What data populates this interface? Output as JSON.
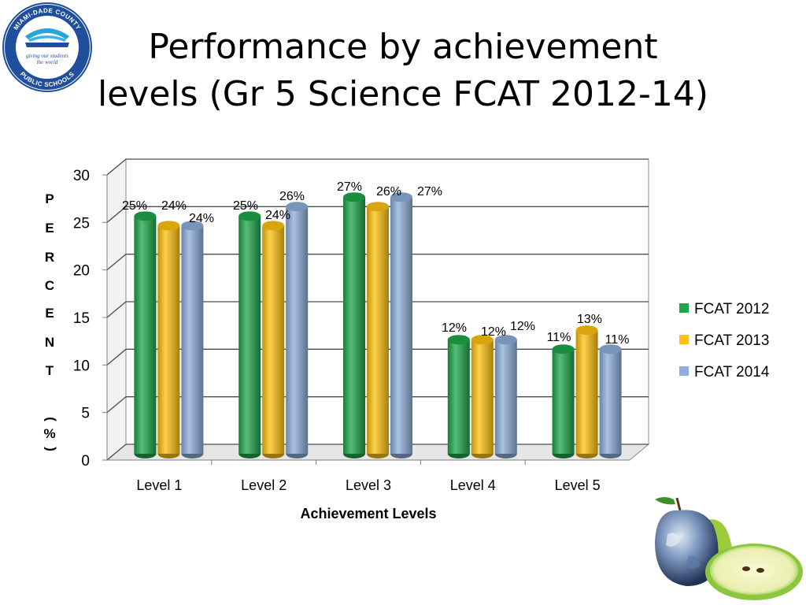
{
  "title_line1": "Performance by achievement",
  "title_line2": "levels (Gr 5 Science FCAT 2012-14)",
  "logo": {
    "top_text": "MIAMI-DADE COUNTY",
    "tagline_1": "giving our students",
    "tagline_2": "the world",
    "bottom_text": "PUBLIC SCHOOLS"
  },
  "colors": {
    "green": "#1fa64a",
    "gold": "#ffc20e",
    "blue": "#8eaedb"
  },
  "chart_data": {
    "type": "bar",
    "title": "Performance by achievement levels (Gr 5 Science FCAT 2012-14)",
    "xlabel": "Achievement Levels",
    "ylabel": "PERCENT (%)",
    "ylabel_letters": [
      "P",
      "E",
      "R",
      "C",
      "E",
      "N",
      "T",
      "",
      "(",
      "%",
      ")"
    ],
    "categories": [
      "Level 1",
      "Level 2",
      "Level 3",
      "Level 4",
      "Level 5"
    ],
    "ylim": [
      0,
      30
    ],
    "yticks": [
      0,
      5,
      10,
      15,
      20,
      25,
      30
    ],
    "grid": true,
    "legend_position": "right",
    "series": [
      {
        "name": "FCAT 2012",
        "color": "#1fa64a",
        "values": [
          25,
          25,
          27,
          12,
          11
        ],
        "labels": [
          "25%",
          "25%",
          "27%",
          "12%",
          "11%"
        ]
      },
      {
        "name": "FCAT 2013",
        "color": "#ffc20e",
        "values": [
          24,
          24,
          26,
          12,
          13
        ],
        "labels": [
          "24%",
          "24%",
          "26%",
          "12%",
          "13%"
        ]
      },
      {
        "name": "FCAT 2014",
        "color": "#8eaedb",
        "values": [
          24,
          26,
          27,
          12,
          11
        ],
        "labels": [
          "24%",
          "26%",
          "27%",
          "12%",
          "11%"
        ]
      }
    ]
  }
}
